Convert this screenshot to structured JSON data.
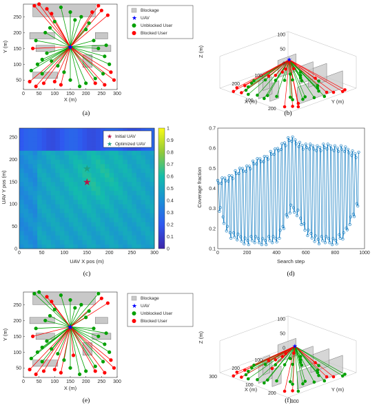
{
  "panels": {
    "a": {
      "caption": "(a)",
      "xlabel": "X (m)",
      "ylabel": "Y (m)",
      "xticks": [
        0,
        50,
        100,
        150,
        200,
        250,
        300
      ],
      "yticks": [
        50,
        100,
        150,
        200,
        250
      ]
    },
    "b": {
      "caption": "(b)",
      "xlabel": "X (m)",
      "ylabel": "Y (m)",
      "zlabel": "Z (m)",
      "xticks": [
        100,
        200
      ],
      "yticks": [
        100,
        200
      ],
      "zticks": [
        0,
        50,
        100
      ]
    },
    "c": {
      "caption": "(c)",
      "xlabel": "UAV X pos (m)",
      "ylabel": "UAV Y pos (m)",
      "xticks": [
        0,
        50,
        100,
        150,
        200,
        250,
        300
      ],
      "yticks": [
        0,
        50,
        100,
        150,
        200,
        250
      ],
      "cbticks": [
        0,
        0.1,
        0.2,
        0.3,
        0.4,
        0.5,
        0.6,
        0.7,
        0.8,
        0.9,
        1
      ]
    },
    "d": {
      "caption": "(d)",
      "xlabel": "Search step",
      "ylabel": "Coverage fraction",
      "xticks": [
        0,
        200,
        400,
        600,
        800,
        1000
      ],
      "yticks": [
        0.1,
        0.2,
        0.3,
        0.4,
        0.5,
        0.6,
        0.7
      ]
    },
    "e": {
      "caption": "(e)",
      "xlabel": "X (m)",
      "ylabel": "Y (m)",
      "xticks": [
        0,
        50,
        100,
        150,
        200,
        250,
        300
      ],
      "yticks": [
        50,
        100,
        150,
        200,
        250
      ]
    },
    "f": {
      "caption": "(f)",
      "xlabel": "X (m)",
      "ylabel": "Y (m)",
      "zlabel": "Z (m)",
      "xticks": [
        100,
        200,
        300
      ],
      "yticks": [
        100,
        200,
        300
      ],
      "zticks": [
        0,
        50,
        100
      ]
    }
  },
  "legend": {
    "blockage": "Blockage",
    "uav": "UAV",
    "unblocked": "Unblocked User",
    "blocked": "Blocked User"
  },
  "legend_c": {
    "initial": "Initial UAV",
    "optimized": "Optimized UAV"
  },
  "colors": {
    "blockage": "#c8c8c8",
    "uav": "#0000ff",
    "unblocked": "#00a000",
    "blocked": "#ff0000",
    "line": "#0072bd"
  },
  "chart_data": [
    {
      "type": "scatter",
      "panel": "a",
      "xlim": [
        0,
        300
      ],
      "ylim": [
        20,
        290
      ],
      "uav": [
        150,
        155
      ],
      "blockages": [
        [
          30,
          250,
          230,
          290
        ],
        [
          20,
          180,
          100,
          200
        ],
        [
          230,
          180,
          270,
          200
        ],
        [
          40,
          140,
          100,
          160
        ],
        [
          220,
          140,
          280,
          160
        ],
        [
          30,
          55,
          110,
          75
        ],
        [
          190,
          90,
          220,
          130
        ]
      ],
      "unblocked_users": [
        [
          25,
          80
        ],
        [
          45,
          100
        ],
        [
          60,
          115
        ],
        [
          75,
          135
        ],
        [
          40,
          175
        ],
        [
          70,
          200
        ],
        [
          100,
          235
        ],
        [
          120,
          280
        ],
        [
          150,
          265
        ],
        [
          165,
          240
        ],
        [
          185,
          250
        ],
        [
          200,
          210
        ],
        [
          225,
          175
        ],
        [
          240,
          150
        ],
        [
          260,
          125
        ],
        [
          275,
          100
        ],
        [
          255,
          70
        ],
        [
          230,
          55
        ],
        [
          200,
          40
        ],
        [
          180,
          30
        ],
        [
          150,
          50
        ],
        [
          130,
          75
        ],
        [
          110,
          95
        ],
        [
          90,
          110
        ],
        [
          60,
          70
        ],
        [
          85,
          215
        ],
        [
          210,
          230
        ],
        [
          265,
          160
        ]
      ],
      "blocked_users": [
        [
          35,
          285
        ],
        [
          50,
          290
        ],
        [
          75,
          275
        ],
        [
          90,
          260
        ],
        [
          250,
          270
        ],
        [
          270,
          255
        ],
        [
          240,
          285
        ],
        [
          20,
          45
        ],
        [
          40,
          30
        ],
        [
          65,
          40
        ],
        [
          230,
          40
        ],
        [
          260,
          35
        ],
        [
          290,
          50
        ],
        [
          280,
          75
        ],
        [
          120,
          35
        ],
        [
          100,
          45
        ],
        [
          220,
          265
        ],
        [
          30,
          150
        ]
      ]
    },
    {
      "type": "heatmap",
      "panel": "c",
      "x_range": [
        0,
        300
      ],
      "y_range": [
        0,
        270
      ],
      "initial_uav": [
        150,
        150
      ],
      "optimized_uav": [
        150,
        180
      ],
      "color_range": [
        0,
        1
      ]
    },
    {
      "type": "line",
      "panel": "d",
      "xlim": [
        0,
        1000
      ],
      "ylim": [
        0.1,
        0.7
      ],
      "steps": 960,
      "envelope_upper": [
        [
          0,
          0.44
        ],
        [
          100,
          0.48
        ],
        [
          200,
          0.52
        ],
        [
          300,
          0.56
        ],
        [
          400,
          0.6
        ],
        [
          450,
          0.64
        ],
        [
          500,
          0.66
        ],
        [
          550,
          0.64
        ],
        [
          600,
          0.62
        ],
        [
          700,
          0.62
        ],
        [
          800,
          0.62
        ],
        [
          900,
          0.6
        ],
        [
          960,
          0.58
        ]
      ],
      "envelope_lower": [
        [
          0,
          0.3
        ],
        [
          50,
          0.2
        ],
        [
          100,
          0.14
        ],
        [
          200,
          0.12
        ],
        [
          300,
          0.12
        ],
        [
          400,
          0.12
        ],
        [
          450,
          0.2
        ],
        [
          500,
          0.28
        ],
        [
          550,
          0.26
        ],
        [
          600,
          0.16
        ],
        [
          700,
          0.12
        ],
        [
          800,
          0.12
        ],
        [
          860,
          0.14
        ],
        [
          900,
          0.22
        ],
        [
          960,
          0.3
        ]
      ]
    },
    {
      "type": "scatter",
      "panel": "e",
      "xlim": [
        0,
        300
      ],
      "ylim": [
        20,
        290
      ],
      "uav": [
        150,
        180
      ],
      "blockages": [
        [
          30,
          250,
          230,
          290
        ],
        [
          20,
          190,
          100,
          210
        ],
        [
          230,
          190,
          270,
          210
        ],
        [
          40,
          140,
          100,
          160
        ],
        [
          220,
          140,
          280,
          160
        ],
        [
          30,
          55,
          110,
          75
        ],
        [
          190,
          90,
          220,
          130
        ]
      ],
      "unblocked_users": [
        [
          25,
          80
        ],
        [
          45,
          100
        ],
        [
          60,
          115
        ],
        [
          75,
          135
        ],
        [
          40,
          175
        ],
        [
          70,
          200
        ],
        [
          100,
          235
        ],
        [
          120,
          280
        ],
        [
          150,
          265
        ],
        [
          165,
          240
        ],
        [
          185,
          250
        ],
        [
          200,
          210
        ],
        [
          225,
          175
        ],
        [
          240,
          150
        ],
        [
          260,
          125
        ],
        [
          275,
          100
        ],
        [
          255,
          70
        ],
        [
          230,
          55
        ],
        [
          200,
          40
        ],
        [
          180,
          30
        ],
        [
          150,
          50
        ],
        [
          130,
          75
        ],
        [
          110,
          95
        ],
        [
          90,
          110
        ],
        [
          60,
          70
        ],
        [
          85,
          215
        ],
        [
          210,
          230
        ],
        [
          265,
          160
        ],
        [
          35,
          285
        ],
        [
          50,
          290
        ],
        [
          240,
          285
        ]
      ],
      "blocked_users": [
        [
          75,
          275
        ],
        [
          90,
          260
        ],
        [
          250,
          270
        ],
        [
          270,
          255
        ],
        [
          20,
          45
        ],
        [
          40,
          30
        ],
        [
          65,
          40
        ],
        [
          230,
          40
        ],
        [
          260,
          35
        ],
        [
          290,
          50
        ],
        [
          280,
          75
        ],
        [
          120,
          35
        ],
        [
          100,
          45
        ],
        [
          30,
          150
        ],
        [
          160,
          90
        ]
      ]
    }
  ]
}
